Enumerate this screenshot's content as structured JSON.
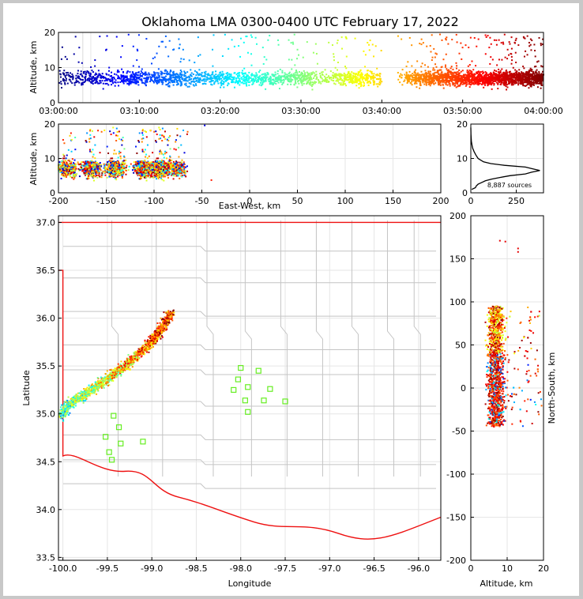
{
  "chart_data": [
    {
      "type": "scatter",
      "panel": "altitude-vs-time",
      "title": "Oklahoma LMA 0300-0400 UTC February 17, 2022",
      "xlabel": "",
      "ylabel": "Altitude, km",
      "xlim": [
        0,
        60
      ],
      "ylim": [
        0,
        20
      ],
      "x_ticks": [
        "03:00:00",
        "03:10:00",
        "03:20:00",
        "03:30:00",
        "03:40:00",
        "03:50:00",
        "04:00:00"
      ],
      "y_ticks": [
        "0",
        "10",
        "20"
      ],
      "colormap": "jet (colored by time)",
      "density_by_minute": [
        0.5,
        0.4,
        0.6,
        0.6,
        0.8,
        0.6,
        0.5,
        0.6,
        0.9,
        1.2,
        0.8,
        0.8,
        1.0,
        1.1,
        1.0,
        0.9,
        0.6,
        0.7,
        0.6,
        0.8,
        1.0,
        0.8,
        0.8,
        0.9,
        0.7,
        0.9,
        0.8,
        0.8,
        0.9,
        1.0,
        1.1,
        0.9,
        0.4,
        0.5,
        0.9,
        1.0,
        1.2,
        1.1,
        1.0,
        0.6,
        0.0,
        0.0,
        0.3,
        0.9,
        1.4,
        1.6,
        1.7,
        1.8,
        1.9,
        2.0,
        2.0,
        2.0,
        2.1,
        2.1,
        2.2,
        2.3,
        2.3,
        2.4,
        2.5,
        2.5
      ],
      "altitude_center_km": 7,
      "altitude_range_km": [
        1,
        20
      ]
    },
    {
      "type": "scatter",
      "panel": "altitude-vs-east-west",
      "xlabel": "East-West, km",
      "ylabel": "Altitude, km",
      "xlim": [
        -200,
        200
      ],
      "ylim": [
        0,
        20
      ],
      "x_ticks": [
        "-200",
        "-150",
        "-100",
        "-50",
        "0",
        "50",
        "100",
        "150",
        "200"
      ],
      "y_ticks": [
        "0",
        "10",
        "20"
      ],
      "extent_x_km": [
        -200,
        -65
      ]
    },
    {
      "type": "line",
      "panel": "altitude-histogram",
      "annotation": "8,887 sources",
      "xlim": [
        0,
        400
      ],
      "ylim": [
        0,
        20
      ],
      "x_ticks": [
        "0",
        "250"
      ],
      "y_ticks": [
        "0",
        "10",
        "20"
      ],
      "profile": [
        {
          "altitude": 1.0,
          "count": 5
        },
        {
          "altitude": 1.5,
          "count": 25
        },
        {
          "altitude": 2.0,
          "count": 30
        },
        {
          "altitude": 2.5,
          "count": 40
        },
        {
          "altitude": 3.0,
          "count": 60
        },
        {
          "altitude": 3.5,
          "count": 80
        },
        {
          "altitude": 4.0,
          "count": 115
        },
        {
          "altitude": 4.5,
          "count": 165
        },
        {
          "altitude": 5.0,
          "count": 215
        },
        {
          "altitude": 5.5,
          "count": 300
        },
        {
          "altitude": 6.0,
          "count": 335
        },
        {
          "altitude": 6.5,
          "count": 380
        },
        {
          "altitude": 7.0,
          "count": 340
        },
        {
          "altitude": 7.5,
          "count": 300
        },
        {
          "altitude": 8.0,
          "count": 185
        },
        {
          "altitude": 8.5,
          "count": 110
        },
        {
          "altitude": 9.0,
          "count": 70
        },
        {
          "altitude": 9.5,
          "count": 55
        },
        {
          "altitude": 10.0,
          "count": 40
        },
        {
          "altitude": 11.0,
          "count": 28
        },
        {
          "altitude": 12.0,
          "count": 18
        },
        {
          "altitude": 13.0,
          "count": 10
        },
        {
          "altitude": 14.0,
          "count": 6
        },
        {
          "altitude": 15.0,
          "count": 3
        },
        {
          "altitude": 17.0,
          "count": 1
        },
        {
          "altitude": 19.0,
          "count": 0
        }
      ]
    },
    {
      "type": "map",
      "panel": "plan-view",
      "xlabel": "Longitude",
      "ylabel": "Latitude",
      "xlim": [
        -100.05,
        -95.75
      ],
      "ylim": [
        33.47,
        37.07
      ],
      "x_ticks": [
        "-100.0",
        "-99.5",
        "-99.0",
        "-98.5",
        "-98.0",
        "-97.5",
        "-97.0",
        "-96.5",
        "-96.0"
      ],
      "y_ticks": [
        "33.5",
        "34.0",
        "34.5",
        "35.0",
        "35.5",
        "36.0",
        "36.5",
        "37.0"
      ],
      "storm_line": [
        {
          "lon": -100.02,
          "lat": 34.98
        },
        {
          "lon": -99.9,
          "lat": 35.13
        },
        {
          "lon": -99.75,
          "lat": 35.2
        },
        {
          "lon": -99.6,
          "lat": 35.3
        },
        {
          "lon": -99.45,
          "lat": 35.4
        },
        {
          "lon": -99.3,
          "lat": 35.5
        },
        {
          "lon": -99.15,
          "lat": 35.62
        },
        {
          "lon": -99.0,
          "lat": 35.75
        },
        {
          "lon": -98.9,
          "lat": 35.88
        },
        {
          "lon": -98.78,
          "lat": 36.05
        }
      ],
      "lma_stations": [
        {
          "lon": -99.43,
          "lat": 34.98
        },
        {
          "lon": -99.37,
          "lat": 34.86
        },
        {
          "lon": -99.52,
          "lat": 34.76
        },
        {
          "lon": -99.35,
          "lat": 34.69
        },
        {
          "lon": -99.1,
          "lat": 34.71
        },
        {
          "lon": -99.48,
          "lat": 34.6
        },
        {
          "lon": -99.45,
          "lat": 34.52
        },
        {
          "lon": -98.0,
          "lat": 35.48
        },
        {
          "lon": -97.8,
          "lat": 35.45
        },
        {
          "lon": -98.03,
          "lat": 35.36
        },
        {
          "lon": -97.92,
          "lat": 35.28
        },
        {
          "lon": -98.08,
          "lat": 35.25
        },
        {
          "lon": -97.67,
          "lat": 35.26
        },
        {
          "lon": -97.95,
          "lat": 35.14
        },
        {
          "lon": -97.74,
          "lat": 35.14
        },
        {
          "lon": -97.5,
          "lat": 35.13
        },
        {
          "lon": -97.92,
          "lat": 35.02
        }
      ],
      "boundary_color": "#ee1111",
      "county_color": "#c4c4c4",
      "station_color": "#66ee22"
    },
    {
      "type": "scatter",
      "panel": "north-south-vs-altitude",
      "xlabel": "Altitude, km",
      "ylabel": "North-South, km",
      "xlim": [
        0,
        20
      ],
      "ylim": [
        -200,
        200
      ],
      "x_ticks": [
        "0",
        "10",
        "20"
      ],
      "y_ticks": [
        "-200",
        "-150",
        "-100",
        "-50",
        "0",
        "50",
        "100",
        "150",
        "200"
      ],
      "extent_y_km": [
        -50,
        95
      ]
    }
  ]
}
